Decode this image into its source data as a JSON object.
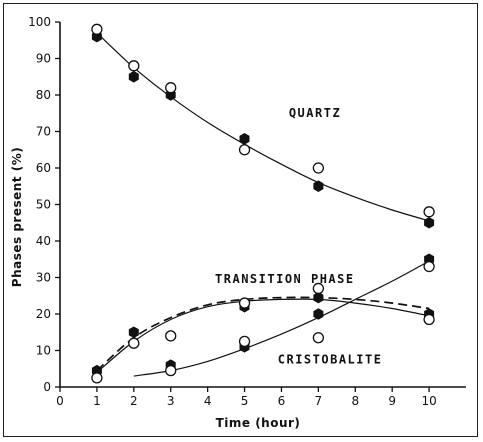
{
  "chart_data": {
    "type": "scatter",
    "xlabel": "Time (hour)",
    "ylabel": "Phases present (%)",
    "xlim": [
      0,
      11
    ],
    "ylim": [
      0,
      100
    ],
    "x_ticks": [
      "0",
      "1",
      "2",
      "3",
      "4",
      "5",
      "6",
      "7",
      "8",
      "9",
      "10"
    ],
    "y_ticks": [
      "0",
      "10",
      "20",
      "30",
      "40",
      "50",
      "60",
      "70",
      "80",
      "90",
      "100"
    ],
    "annotations": [
      {
        "text": "QUARTZ",
        "x": 6.2,
        "y": 74
      },
      {
        "text": "TRANSITION PHASE",
        "x": 4.2,
        "y": 28.5
      },
      {
        "text": "CRISTOBALITE",
        "x": 5.9,
        "y": 6.5
      }
    ],
    "marker_colors": {
      "filled": "#111111",
      "open": "#ffffff",
      "line": "#111111"
    },
    "series": [
      {
        "group": "quartz",
        "marker": "filled",
        "x": [
          1,
          2,
          3,
          5,
          7,
          10
        ],
        "y": [
          96,
          85,
          80,
          68,
          55,
          45
        ]
      },
      {
        "group": "quartz",
        "marker": "open",
        "x": [
          1,
          2,
          3,
          5,
          7,
          10
        ],
        "y": [
          98,
          88,
          82,
          65,
          60,
          48
        ]
      },
      {
        "group": "transition",
        "marker": "filled",
        "x": [
          1,
          2,
          3,
          5,
          7,
          10
        ],
        "y": [
          4.5,
          15,
          14,
          22,
          24.5,
          20
        ]
      },
      {
        "group": "transition",
        "marker": "open",
        "x": [
          1,
          2,
          3,
          5,
          7,
          10
        ],
        "y": [
          2.5,
          12,
          14,
          23,
          27,
          18.5
        ]
      },
      {
        "group": "cristobalite",
        "marker": "filled",
        "x": [
          3,
          5,
          7,
          10
        ],
        "y": [
          6,
          11,
          20,
          35
        ]
      },
      {
        "group": "cristobalite",
        "marker": "open",
        "x": [
          3,
          5,
          7,
          10
        ],
        "y": [
          4.5,
          12.5,
          13.5,
          33
        ]
      }
    ],
    "curves": [
      {
        "group": "quartz",
        "style": "solid",
        "x": [
          1,
          2,
          3,
          4,
          5,
          6,
          7,
          8,
          9,
          10
        ],
        "y": [
          97,
          87.5,
          79.5,
          72.5,
          66.5,
          61,
          56,
          52,
          48.5,
          45.5
        ]
      },
      {
        "group": "transition",
        "style": "solid",
        "x": [
          1,
          2,
          3,
          4,
          5,
          6,
          7,
          8,
          9,
          10
        ],
        "y": [
          4,
          12.5,
          18.5,
          22,
          23.5,
          24,
          24,
          23,
          21.5,
          19.5
        ]
      },
      {
        "group": "transition",
        "style": "dashed",
        "x": [
          1,
          2,
          3,
          4,
          5,
          6,
          7,
          8,
          9,
          10
        ],
        "y": [
          4.5,
          13.5,
          19,
          22.5,
          24,
          24.5,
          24.5,
          24,
          23,
          21.5
        ]
      },
      {
        "group": "cristobalite",
        "style": "solid",
        "x": [
          2,
          3,
          4,
          5,
          6,
          7,
          8,
          9,
          10
        ],
        "y": [
          3,
          4.5,
          7,
          10.5,
          14.5,
          19,
          24,
          29,
          34.5
        ]
      }
    ],
    "grid": false,
    "legend": "none"
  }
}
